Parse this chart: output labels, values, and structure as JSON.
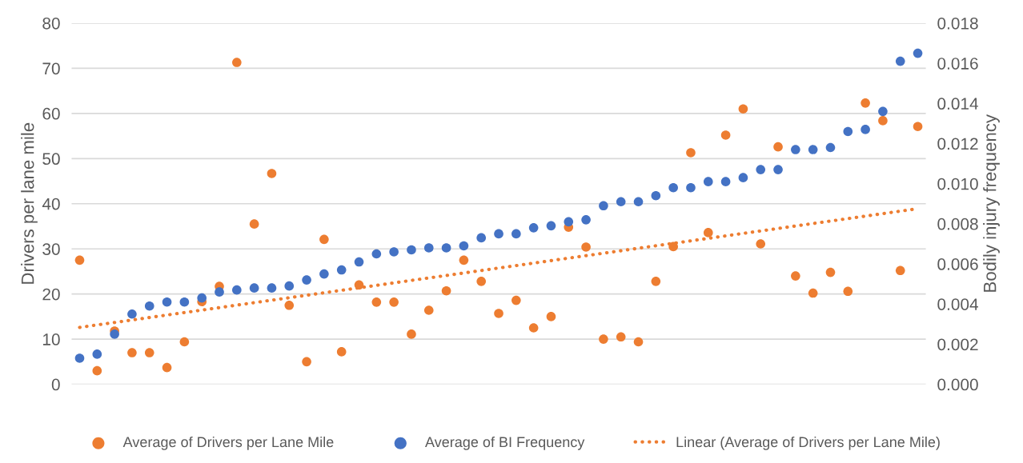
{
  "chart_data": {
    "type": "scatter",
    "categories": [
      null,
      null,
      null,
      null,
      null,
      null,
      null,
      null,
      null,
      null,
      null,
      null,
      null,
      null,
      null,
      null,
      null,
      null,
      null,
      null,
      null,
      null,
      null,
      null,
      null,
      null,
      null,
      null,
      null,
      null,
      null,
      null,
      null,
      null,
      null,
      null,
      null,
      null,
      null,
      null,
      null,
      null,
      null,
      null,
      null,
      null,
      null,
      null,
      null
    ],
    "ylabel": "Drivers per lane mile",
    "y2label": "Bodily injury frequency",
    "ylim": [
      0,
      80
    ],
    "yticks": [
      0,
      10,
      20,
      30,
      40,
      50,
      60,
      70,
      80
    ],
    "y2lim": [
      0,
      0.018
    ],
    "y2ticks": [
      {
        "value": 0,
        "label": "0.000"
      },
      {
        "value": 0.002,
        "label": "0.002"
      },
      {
        "value": 0.004,
        "label": "0.004"
      },
      {
        "value": 0.006,
        "label": "0.006"
      },
      {
        "value": 0.008,
        "label": "0.008"
      },
      {
        "value": 0.01,
        "label": "0.010"
      },
      {
        "value": 0.012,
        "label": "0.012"
      },
      {
        "value": 0.014,
        "label": "0.014"
      },
      {
        "value": 0.016,
        "label": "0.016"
      },
      {
        "value": 0.018,
        "label": "0.018"
      }
    ],
    "grid": "y",
    "legend": "bottom",
    "marker": "circle",
    "series": [
      {
        "name": "Average of Drivers per Lane Mile",
        "color": "#ed7d31",
        "values": [
          27.5,
          3,
          11.8,
          7,
          7,
          3.7,
          9.4,
          18.3,
          21.7,
          71.3,
          35.5,
          46.7,
          17.5,
          5,
          32.1,
          7.2,
          22,
          18.2,
          18.2,
          11.1,
          16.4,
          20.7,
          27.5,
          22.8,
          15.7,
          18.6,
          12.5,
          15,
          34.8,
          30.4,
          10,
          10.5,
          9.4,
          22.8,
          30.5,
          51.3,
          33.6,
          55.2,
          61,
          31.1,
          52.6,
          24,
          20.2,
          24.8,
          20.6,
          62.3,
          58.4,
          25.2,
          57.1
        ]
      },
      {
        "name": "Average of BI Frequency",
        "color": "#4472c4",
        "axis": "y2",
        "values": [
          0.0013,
          0.0015,
          0.0025,
          0.0035,
          0.0039,
          0.0041,
          0.0041,
          0.0043,
          0.0046,
          0.0047,
          0.0048,
          0.0048,
          0.0049,
          0.0052,
          0.0055,
          0.0057,
          0.0061,
          0.0065,
          0.0066,
          0.0067,
          0.0068,
          0.0068,
          0.0069,
          0.0073,
          0.0075,
          0.0075,
          0.0078,
          0.0079,
          0.0081,
          0.0082,
          0.0089,
          0.0091,
          0.0091,
          0.0094,
          0.0098,
          0.0098,
          0.0101,
          0.0101,
          0.0103,
          0.0107,
          0.0107,
          0.0117,
          0.0117,
          0.0118,
          0.0126,
          0.0127,
          0.0136,
          0.0161,
          0.0165
        ]
      },
      {
        "name": "Linear (Average of Drivers per Lane Mile)",
        "type": "line",
        "line_style": "dotted",
        "marker": "none",
        "color": "#ed7d31",
        "values": [
          12.6,
          null,
          null,
          null,
          null,
          null,
          null,
          null,
          null,
          null,
          null,
          null,
          null,
          null,
          null,
          null,
          null,
          null,
          null,
          null,
          null,
          null,
          null,
          null,
          null,
          null,
          null,
          null,
          null,
          null,
          null,
          null,
          null,
          null,
          null,
          null,
          null,
          null,
          null,
          null,
          null,
          null,
          null,
          null,
          null,
          null,
          null,
          null,
          38.9
        ]
      }
    ]
  }
}
